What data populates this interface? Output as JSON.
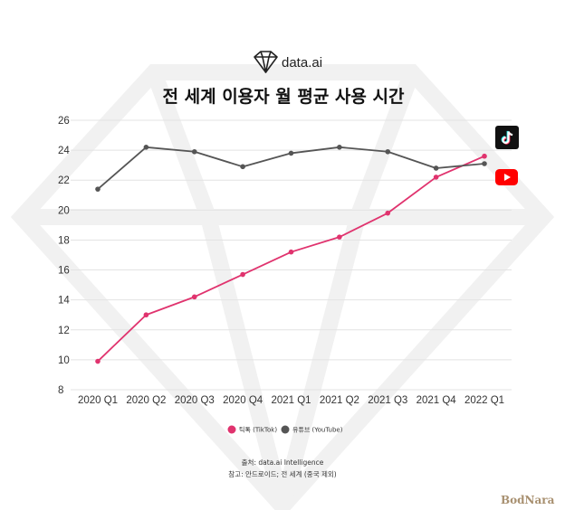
{
  "header": {
    "brand": "data.ai",
    "title": "전 세계 이용자 월 평균 사용 시간"
  },
  "chart_data": {
    "type": "line",
    "title": "전 세계 이용자 월 평균 사용 시간",
    "categories": [
      "2020 Q1",
      "2020 Q2",
      "2020 Q3",
      "2020 Q4",
      "2021 Q1",
      "2021 Q2",
      "2021 Q3",
      "2021 Q4",
      "2022 Q1"
    ],
    "series": [
      {
        "name": "틱톡 (TikTok)",
        "color": "#e0336e",
        "values": [
          9.9,
          13.0,
          14.2,
          15.7,
          17.2,
          18.2,
          19.8,
          22.2,
          23.6
        ]
      },
      {
        "name": "유튜브 (YouTube)",
        "color": "#555555",
        "values": [
          21.4,
          24.2,
          23.9,
          22.9,
          23.8,
          24.2,
          23.9,
          22.8,
          23.1
        ]
      }
    ],
    "ylim": [
      8,
      26
    ],
    "yticks": [
      8,
      10,
      12,
      14,
      16,
      18,
      20,
      22,
      24,
      26
    ],
    "grid": true,
    "legend": "bottom-center"
  },
  "legend": {
    "tiktok": "틱톡 (TikTok)",
    "youtube": "유튜브 (YouTube)"
  },
  "source": {
    "line1": "출처: data.ai Intelligence",
    "line2": "참고: 안드로이드; 전 세계 (중국 제외)"
  },
  "watermark": "BodNara",
  "icons": {
    "brand": "diamond-logo-icon",
    "tiktok": "tiktok-icon",
    "youtube": "youtube-icon"
  }
}
